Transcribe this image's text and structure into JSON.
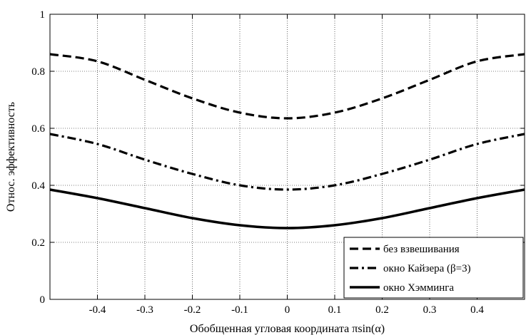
{
  "chart_data": {
    "type": "line",
    "xlabel": "Обобщенная угловая координата πsin(α)",
    "ylabel": "Относ. эффективность",
    "xlim": [
      -0.5,
      0.5
    ],
    "ylim": [
      0,
      1
    ],
    "xticks": [
      -0.4,
      -0.3,
      -0.2,
      -0.1,
      0,
      0.1,
      0.2,
      0.3,
      0.4
    ],
    "xtick_labels": [
      "-0.4",
      "-0.3",
      "-0.2",
      "-0.1",
      "0",
      "0.1",
      "0.2",
      "0.3",
      "0.4"
    ],
    "yticks": [
      0,
      0.2,
      0.4,
      0.6,
      0.8,
      1
    ],
    "ytick_labels": [
      "0",
      "0.2",
      "0.4",
      "0.6",
      "0.8",
      "1"
    ],
    "grid": true,
    "legend_position": "bottom-right",
    "colors": {
      "line": "#000000",
      "grid": "#000000"
    },
    "series": [
      {
        "name": "без взвешивания",
        "style": "dashed",
        "x": [
          -0.5,
          -0.4,
          -0.3,
          -0.2,
          -0.1,
          0,
          0.1,
          0.2,
          0.3,
          0.4,
          0.5
        ],
        "values": [
          0.86,
          0.835,
          0.77,
          0.705,
          0.655,
          0.635,
          0.655,
          0.705,
          0.77,
          0.835,
          0.86
        ]
      },
      {
        "name": "окно Кайзера (β=3)",
        "style": "dash-dot",
        "x": [
          -0.5,
          -0.4,
          -0.3,
          -0.2,
          -0.1,
          0,
          0.1,
          0.2,
          0.3,
          0.4,
          0.5
        ],
        "values": [
          0.58,
          0.545,
          0.49,
          0.44,
          0.4,
          0.385,
          0.4,
          0.44,
          0.49,
          0.545,
          0.58
        ]
      },
      {
        "name": "окно Хэмминга",
        "style": "solid",
        "x": [
          -0.5,
          -0.4,
          -0.3,
          -0.2,
          -0.1,
          0,
          0.1,
          0.2,
          0.3,
          0.4,
          0.5
        ],
        "values": [
          0.385,
          0.355,
          0.32,
          0.285,
          0.26,
          0.25,
          0.26,
          0.285,
          0.32,
          0.355,
          0.385
        ]
      }
    ]
  }
}
